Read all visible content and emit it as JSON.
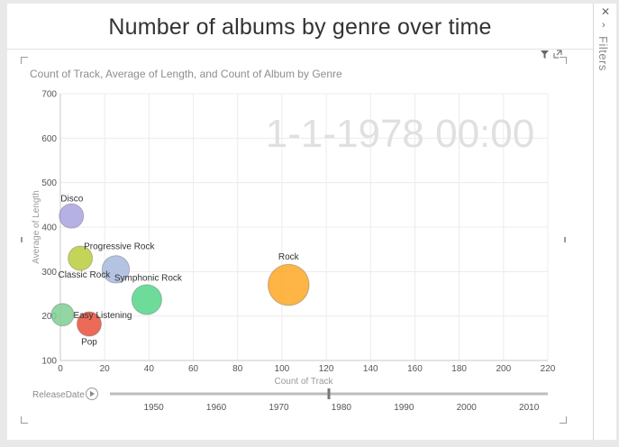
{
  "report": {
    "title": "Number of albums by genre over time"
  },
  "visual": {
    "subtitle": "Count of Track, Average of Length, and Count of Album by Genre",
    "play_axis_label": "ReleaseDate",
    "current_play_value": "1-1-1978 00:00"
  },
  "filters_pane": {
    "label": "Filters"
  },
  "icons": {
    "filter": "filter-icon",
    "focus": "focus-mode-icon",
    "play": "play-icon",
    "close": "close-icon",
    "expand": "chevron-right-icon"
  },
  "chart_data": {
    "type": "scatter",
    "title": "",
    "xlabel": "Count of Track",
    "ylabel": "Average of Length",
    "size_label": "Count of Album",
    "xlim": [
      0,
      220
    ],
    "ylim": [
      100,
      700
    ],
    "x_ticks": [
      0,
      20,
      40,
      60,
      80,
      100,
      120,
      140,
      160,
      180,
      200,
      220
    ],
    "y_ticks": [
      100,
      200,
      300,
      400,
      500,
      600,
      700
    ],
    "grid": true,
    "points": [
      {
        "label": "Disco",
        "x": 5,
        "y": 425,
        "size": 2,
        "color": "#a9a3e0"
      },
      {
        "label": "Progressive Rock",
        "x": 9,
        "y": 330,
        "size": 2,
        "color": "#b9cd3c"
      },
      {
        "label": "Classic Rock",
        "x": 25,
        "y": 305,
        "size": 3,
        "color": "#a8b9de"
      },
      {
        "label": "Symphonic Rock",
        "x": 39,
        "y": 237,
        "size": 4,
        "color": "#54d68a"
      },
      {
        "label": "Rock",
        "x": 103,
        "y": 270,
        "size": 10,
        "color": "#ffa726"
      },
      {
        "label": "Easy Listening",
        "x": 1,
        "y": 203,
        "size": 1.5,
        "color": "#7fcf94"
      },
      {
        "label": "Pop",
        "x": 13,
        "y": 182,
        "size": 2,
        "color": "#e8513b"
      }
    ],
    "play_axis": {
      "label": "ReleaseDate",
      "ticks": [
        1950,
        1960,
        1970,
        1980,
        1990,
        2000,
        2010
      ],
      "range": [
        1943,
        2013
      ],
      "current": 1978
    }
  }
}
